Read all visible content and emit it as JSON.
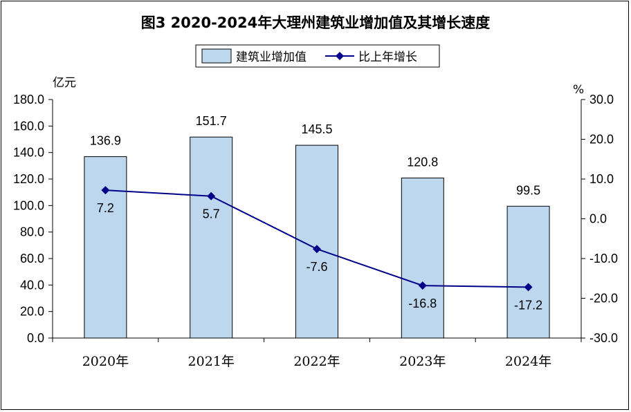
{
  "chart_data": {
    "type": "bar",
    "title": "图3   2020-2024年大理州建筑业增加值及其增长速度",
    "categories": [
      "2020年",
      "2021年",
      "2022年",
      "2023年",
      "2024年"
    ],
    "ylabel_left": "亿元",
    "ylabel_right": "%",
    "ylim_left": [
      0,
      180
    ],
    "ylim_right": [
      -30,
      30
    ],
    "yticks_left": [
      "0.0",
      "20.0",
      "40.0",
      "60.0",
      "80.0",
      "100.0",
      "120.0",
      "140.0",
      "160.0",
      "180.0"
    ],
    "yticks_right": [
      "-30.0",
      "-20.0",
      "-10.0",
      "0.0",
      "10.0",
      "20.0",
      "30.0"
    ],
    "legend_position": "top-center",
    "grid": false,
    "series": [
      {
        "name": "建筑业增加值",
        "type": "bar",
        "axis": "left",
        "values": [
          136.9,
          151.7,
          145.5,
          120.8,
          99.5
        ],
        "labels": [
          "136.9",
          "151.7",
          "145.5",
          "120.8",
          "99.5"
        ],
        "color": "#bdd7ee"
      },
      {
        "name": "比上年增长",
        "type": "line",
        "axis": "right",
        "values": [
          7.2,
          5.7,
          -7.6,
          -16.8,
          -17.2
        ],
        "labels": [
          "7.2",
          "5.7",
          "-7.6",
          "-16.8",
          "-17.2"
        ],
        "color": "#00008b"
      }
    ]
  }
}
